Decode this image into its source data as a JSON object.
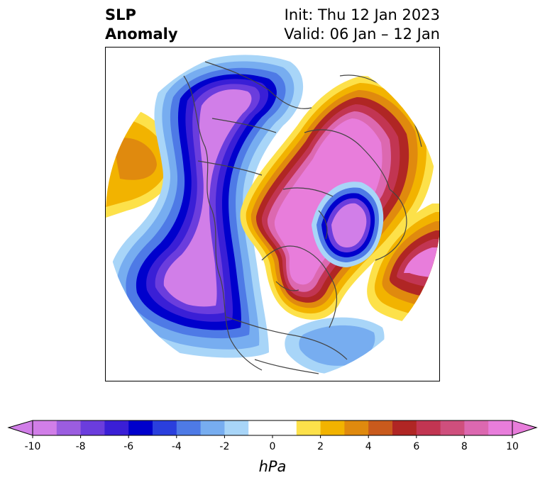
{
  "header": {
    "variable_line1": "SLP",
    "variable_line2": "Anomaly",
    "init_line": "Init: Thu 12 Jan 2023",
    "valid_line": "Valid: 06 Jan – 12 Jan"
  },
  "map": {
    "projection": "north-polar-stereographic",
    "field": "sea level pressure anomaly",
    "coastline_color": "#444444"
  },
  "colorbar": {
    "unit": "hPa",
    "extend": "both",
    "tick_labels": [
      "-10",
      "-8",
      "-6",
      "-4",
      "-2",
      "0",
      "2",
      "4",
      "6",
      "8",
      "10"
    ],
    "bins": [
      {
        "range": [
          -10,
          -9
        ],
        "color": "#d17ee8"
      },
      {
        "range": [
          -9,
          -8
        ],
        "color": "#9b5de0"
      },
      {
        "range": [
          -8,
          -7
        ],
        "color": "#6b3ddd"
      },
      {
        "range": [
          -7,
          -6
        ],
        "color": "#3a1fd6"
      },
      {
        "range": [
          -6,
          -5
        ],
        "color": "#0000cc"
      },
      {
        "range": [
          -5,
          -4
        ],
        "color": "#2a3fdd"
      },
      {
        "range": [
          -4,
          -3
        ],
        "color": "#4e7ae6"
      },
      {
        "range": [
          -3,
          -2
        ],
        "color": "#77adf0"
      },
      {
        "range": [
          -2,
          -1
        ],
        "color": "#a8d5f8"
      },
      {
        "range": [
          -1,
          1
        ],
        "color": "#ffffff"
      },
      {
        "range": [
          1,
          2
        ],
        "color": "#fde14a"
      },
      {
        "range": [
          2,
          3
        ],
        "color": "#f2b300"
      },
      {
        "range": [
          3,
          4
        ],
        "color": "#e08a0e"
      },
      {
        "range": [
          4,
          5
        ],
        "color": "#c95a1c"
      },
      {
        "range": [
          5,
          6
        ],
        "color": "#b02624"
      },
      {
        "range": [
          6,
          7
        ],
        "color": "#c23552"
      },
      {
        "range": [
          7,
          8
        ],
        "color": "#cf4f7d"
      },
      {
        "range": [
          8,
          9
        ],
        "color": "#dc68b0"
      },
      {
        "range": [
          9,
          10
        ],
        "color": "#e87ddb"
      }
    ],
    "under_color": "#d17ee8",
    "over_color": "#e87ddb"
  }
}
